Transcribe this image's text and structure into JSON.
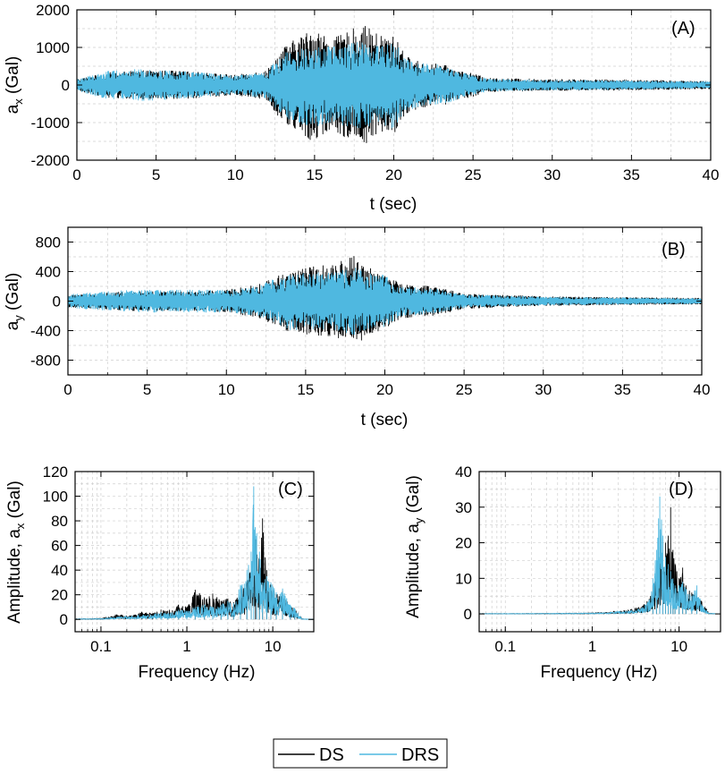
{
  "colors": {
    "ds": "#000000",
    "drs": "#4fb8e0",
    "grid": "#cfcfcf",
    "axis": "#000000"
  },
  "legend": {
    "items": [
      {
        "label": "DS",
        "color": "#000000"
      },
      {
        "label": "DRS",
        "color": "#4fb8e0"
      }
    ]
  },
  "chart_data": [
    {
      "id": "A",
      "type": "line",
      "panel_label": "(A)",
      "xlabel": "t (sec)",
      "ylabel_main": "a",
      "ylabel_sub": "x",
      "ylabel_unit": "(Gal)",
      "xlim": [
        0,
        40
      ],
      "ylim": [
        -2000,
        2000
      ],
      "xticks": [
        0,
        5,
        10,
        15,
        20,
        25,
        30,
        35,
        40
      ],
      "yticks": [
        -2000,
        -1000,
        0,
        1000,
        2000
      ],
      "grid": true,
      "series": [
        {
          "name": "DS",
          "color": "#000000",
          "envelope": [
            [
              0,
              150
            ],
            [
              2,
              330
            ],
            [
              4,
              380
            ],
            [
              6,
              380
            ],
            [
              8,
              330
            ],
            [
              10,
              260
            ],
            [
              12,
              400
            ],
            [
              13,
              1000
            ],
            [
              15,
              1550
            ],
            [
              16,
              1200
            ],
            [
              17,
              1400
            ],
            [
              18,
              1620
            ],
            [
              19,
              1350
            ],
            [
              20,
              1300
            ],
            [
              21,
              700
            ],
            [
              22,
              580
            ],
            [
              23,
              560
            ],
            [
              24,
              400
            ],
            [
              25,
              300
            ],
            [
              26,
              180
            ],
            [
              30,
              150
            ],
            [
              34,
              140
            ],
            [
              37,
              120
            ],
            [
              40,
              100
            ]
          ]
        },
        {
          "name": "DRS",
          "color": "#4fb8e0",
          "envelope": [
            [
              0,
              150
            ],
            [
              2,
              380
            ],
            [
              4,
              420
            ],
            [
              6,
              380
            ],
            [
              8,
              320
            ],
            [
              10,
              240
            ],
            [
              12,
              360
            ],
            [
              13,
              850
            ],
            [
              15,
              1150
            ],
            [
              16,
              1000
            ],
            [
              17,
              1100
            ],
            [
              18,
              1150
            ],
            [
              19,
              1100
            ],
            [
              20,
              1150
            ],
            [
              21,
              650
            ],
            [
              22,
              560
            ],
            [
              23,
              540
            ],
            [
              24,
              380
            ],
            [
              25,
              260
            ],
            [
              26,
              160
            ],
            [
              30,
              130
            ],
            [
              34,
              120
            ],
            [
              37,
              100
            ],
            [
              40,
              90
            ]
          ]
        }
      ]
    },
    {
      "id": "B",
      "type": "line",
      "panel_label": "(B)",
      "xlabel": "t (sec)",
      "ylabel_main": "a",
      "ylabel_sub": "y",
      "ylabel_unit": "(Gal)",
      "xlim": [
        0,
        40
      ],
      "ylim": [
        -1000,
        1000
      ],
      "xticks": [
        0,
        5,
        10,
        15,
        20,
        25,
        30,
        35,
        40
      ],
      "yticks": [
        -800,
        -400,
        0,
        400,
        800
      ],
      "grid": true,
      "series": [
        {
          "name": "DS",
          "color": "#000000",
          "envelope": [
            [
              0,
              80
            ],
            [
              4,
              130
            ],
            [
              8,
              130
            ],
            [
              10,
              150
            ],
            [
              12,
              220
            ],
            [
              14,
              420
            ],
            [
              15,
              450
            ],
            [
              17,
              520
            ],
            [
              18,
              620
            ],
            [
              19,
              450
            ],
            [
              20,
              380
            ],
            [
              21,
              230
            ],
            [
              23,
              200
            ],
            [
              24,
              150
            ],
            [
              25,
              100
            ],
            [
              30,
              60
            ],
            [
              35,
              50
            ],
            [
              40,
              40
            ]
          ]
        },
        {
          "name": "DRS",
          "color": "#4fb8e0",
          "envelope": [
            [
              0,
              90
            ],
            [
              4,
              150
            ],
            [
              8,
              150
            ],
            [
              10,
              150
            ],
            [
              12,
              200
            ],
            [
              14,
              400
            ],
            [
              15,
              380
            ],
            [
              17,
              400
            ],
            [
              18,
              470
            ],
            [
              19,
              380
            ],
            [
              20,
              350
            ],
            [
              21,
              200
            ],
            [
              23,
              180
            ],
            [
              24,
              130
            ],
            [
              25,
              90
            ],
            [
              30,
              55
            ],
            [
              35,
              45
            ],
            [
              40,
              35
            ]
          ]
        }
      ]
    },
    {
      "id": "C",
      "type": "line",
      "panel_label": "(C)",
      "xlabel": "Frequency (Hz)",
      "ylabel_main": "Amplitude, a",
      "ylabel_sub": "x",
      "ylabel_unit": "(Gal)",
      "xscale": "log",
      "xlim": [
        0.05,
        30
      ],
      "ylim": [
        -10,
        120
      ],
      "xticks": [
        0.1,
        1,
        10
      ],
      "xticklabels": [
        "0.1",
        "1",
        "10"
      ],
      "yticks": [
        0,
        20,
        40,
        60,
        80,
        100,
        120
      ],
      "grid": true,
      "series": [
        {
          "name": "DS",
          "color": "#000000",
          "peaks": [
            [
              0.07,
              0.5
            ],
            [
              0.1,
              1
            ],
            [
              0.15,
              4
            ],
            [
              0.22,
              3
            ],
            [
              0.3,
              6
            ],
            [
              0.4,
              5
            ],
            [
              0.5,
              8
            ],
            [
              0.6,
              7
            ],
            [
              0.8,
              12
            ],
            [
              1.0,
              10
            ],
            [
              1.25,
              24
            ],
            [
              1.6,
              18
            ],
            [
              2.0,
              21
            ],
            [
              2.5,
              15
            ],
            [
              3.0,
              17
            ],
            [
              3.5,
              14
            ],
            [
              4.2,
              25
            ],
            [
              5.0,
              30
            ],
            [
              5.6,
              45
            ],
            [
              6.3,
              65
            ],
            [
              7.0,
              48
            ],
            [
              7.6,
              82
            ],
            [
              8.5,
              40
            ],
            [
              9.5,
              28
            ],
            [
              11,
              20
            ],
            [
              13,
              23
            ],
            [
              16,
              10
            ],
            [
              18,
              9
            ],
            [
              22,
              0.5
            ],
            [
              30,
              0
            ]
          ]
        },
        {
          "name": "DRS",
          "color": "#4fb8e0",
          "peaks": [
            [
              0.07,
              0.5
            ],
            [
              0.1,
              1
            ],
            [
              0.15,
              2
            ],
            [
              0.22,
              3
            ],
            [
              0.3,
              4
            ],
            [
              0.4,
              4
            ],
            [
              0.5,
              6
            ],
            [
              0.6,
              5
            ],
            [
              0.8,
              8
            ],
            [
              1.0,
              7
            ],
            [
              1.25,
              10
            ],
            [
              1.6,
              12
            ],
            [
              2.0,
              10
            ],
            [
              2.5,
              12
            ],
            [
              3.0,
              15
            ],
            [
              3.5,
              13
            ],
            [
              4.2,
              28
            ],
            [
              5.0,
              40
            ],
            [
              5.6,
              55
            ],
            [
              6.0,
              108
            ],
            [
              6.5,
              70
            ],
            [
              7.0,
              55
            ],
            [
              7.6,
              30
            ],
            [
              8.5,
              35
            ],
            [
              9.5,
              30
            ],
            [
              11,
              22
            ],
            [
              13,
              25
            ],
            [
              16,
              12
            ],
            [
              18,
              9
            ],
            [
              22,
              0.5
            ],
            [
              30,
              0
            ]
          ]
        }
      ]
    },
    {
      "id": "D",
      "type": "line",
      "panel_label": "(D)",
      "xlabel": "Frequency (Hz)",
      "ylabel_main": "Amplitude, a",
      "ylabel_sub": "y",
      "ylabel_unit": "(Gal)",
      "xscale": "log",
      "xlim": [
        0.05,
        30
      ],
      "ylim": [
        -5,
        40
      ],
      "xticks": [
        0.1,
        1,
        10
      ],
      "xticklabels": [
        "0.1",
        "1",
        "10"
      ],
      "yticks": [
        0,
        10,
        20,
        30,
        40
      ],
      "grid": true,
      "series": [
        {
          "name": "DS",
          "color": "#000000",
          "peaks": [
            [
              0.05,
              0.1
            ],
            [
              0.5,
              0.2
            ],
            [
              1.0,
              0.3
            ],
            [
              1.5,
              0.5
            ],
            [
              2.0,
              1
            ],
            [
              2.5,
              1
            ],
            [
              3.0,
              1.5
            ],
            [
              3.5,
              2
            ],
            [
              4.0,
              3
            ],
            [
              4.5,
              4
            ],
            [
              5.0,
              8
            ],
            [
              5.5,
              10
            ],
            [
              6.0,
              16
            ],
            [
              6.5,
              12
            ],
            [
              7.0,
              20
            ],
            [
              7.5,
              22
            ],
            [
              8.0,
              30
            ],
            [
              8.5,
              18
            ],
            [
              9.0,
              14
            ],
            [
              10,
              10
            ],
            [
              11,
              13
            ],
            [
              12,
              8
            ],
            [
              14,
              6
            ],
            [
              16,
              5
            ],
            [
              18,
              4
            ],
            [
              20,
              2
            ],
            [
              22,
              0.2
            ],
            [
              30,
              0
            ]
          ]
        },
        {
          "name": "DRS",
          "color": "#4fb8e0",
          "peaks": [
            [
              0.05,
              0.1
            ],
            [
              0.5,
              0.2
            ],
            [
              1.0,
              0.3
            ],
            [
              1.5,
              0.4
            ],
            [
              2.0,
              0.8
            ],
            [
              2.5,
              0.8
            ],
            [
              3.0,
              1.2
            ],
            [
              3.5,
              1.5
            ],
            [
              4.0,
              2.5
            ],
            [
              4.5,
              4
            ],
            [
              5.0,
              10
            ],
            [
              5.5,
              18
            ],
            [
              6.0,
              33
            ],
            [
              6.5,
              22
            ],
            [
              7.0,
              16
            ],
            [
              7.5,
              14
            ],
            [
              8.0,
              12
            ],
            [
              8.5,
              10
            ],
            [
              9.0,
              8
            ],
            [
              10,
              8
            ],
            [
              11,
              9
            ],
            [
              12,
              7
            ],
            [
              14,
              5
            ],
            [
              16,
              8
            ],
            [
              18,
              3
            ],
            [
              20,
              1.5
            ],
            [
              22,
              0.2
            ],
            [
              30,
              0
            ]
          ]
        }
      ]
    }
  ]
}
